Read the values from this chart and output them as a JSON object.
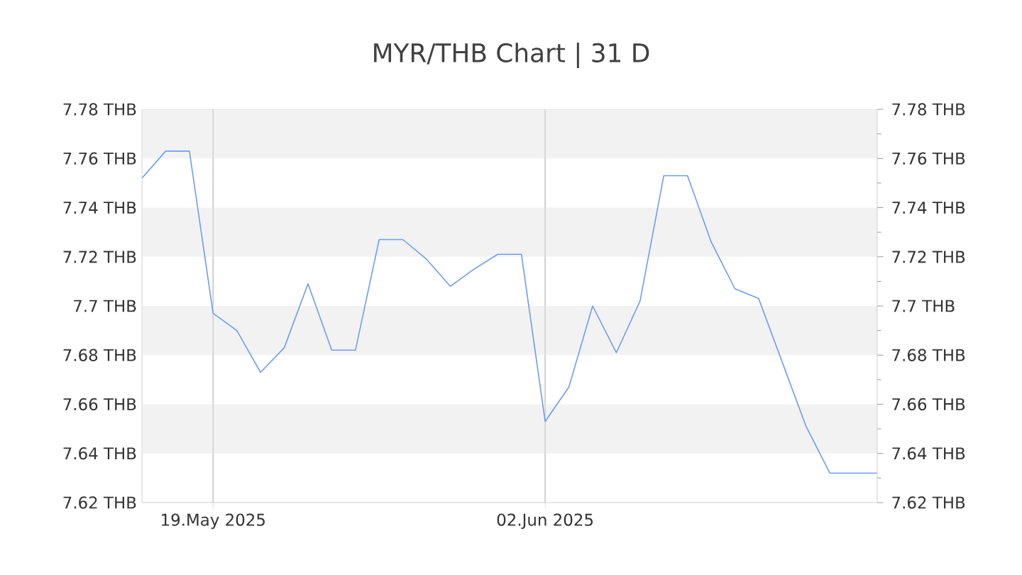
{
  "chart_data": {
    "type": "line",
    "title": "MYR/THB Chart | 31 D",
    "x": [
      "2025-05-16",
      "2025-05-17",
      "2025-05-18",
      "2025-05-19",
      "2025-05-20",
      "2025-05-21",
      "2025-05-22",
      "2025-05-23",
      "2025-05-24",
      "2025-05-25",
      "2025-05-26",
      "2025-05-27",
      "2025-05-28",
      "2025-05-29",
      "2025-05-30",
      "2025-05-31",
      "2025-06-01",
      "2025-06-02",
      "2025-06-03",
      "2025-06-04",
      "2025-06-05",
      "2025-06-06",
      "2025-06-07",
      "2025-06-08",
      "2025-06-09",
      "2025-06-10",
      "2025-06-11",
      "2025-06-12",
      "2025-06-13",
      "2025-06-14",
      "2025-06-15",
      "2025-06-16"
    ],
    "series": [
      {
        "color": "#6f9cf0",
        "values": [
          7.752,
          7.763,
          7.763,
          7.697,
          7.69,
          7.673,
          7.683,
          7.709,
          7.682,
          7.682,
          7.727,
          7.727,
          7.719,
          7.708,
          7.715,
          7.721,
          7.721,
          7.653,
          7.667,
          7.7,
          7.681,
          7.702,
          7.753,
          7.753,
          7.726,
          7.707,
          7.703,
          7.677,
          7.651,
          7.632,
          7.632,
          7.632
        ]
      }
    ],
    "xlim": [
      "2025-05-16",
      "2025-06-16"
    ],
    "xticks": [
      {
        "value": "2025-05-19",
        "label": "19.May 2025"
      },
      {
        "value": "2025-06-02",
        "label": "02.Jun 2025"
      }
    ],
    "ylim": [
      7.62,
      7.78
    ],
    "yticks": [
      {
        "value": 7.62,
        "label": "7.62 THB"
      },
      {
        "value": 7.64,
        "label": "7.64 THB"
      },
      {
        "value": 7.66,
        "label": "7.66 THB"
      },
      {
        "value": 7.68,
        "label": "7.68 THB"
      },
      {
        "value": 7.7,
        "label": "7.7 THB"
      },
      {
        "value": 7.72,
        "label": "7.72 THB"
      },
      {
        "value": 7.74,
        "label": "7.74 THB"
      },
      {
        "value": 7.76,
        "label": "7.76 THB"
      },
      {
        "value": 7.78,
        "label": "7.78 THB"
      }
    ],
    "y2lim": [
      7.62,
      7.78
    ],
    "y2ticks": [
      {
        "value": 7.62,
        "label": "7.62 THB"
      },
      {
        "value": 7.64,
        "label": "7.64 THB"
      },
      {
        "value": 7.66,
        "label": "7.66 THB"
      },
      {
        "value": 7.68,
        "label": "7.68 THB"
      },
      {
        "value": 7.7,
        "label": "7.7 THB"
      },
      {
        "value": 7.72,
        "label": "7.72 THB"
      },
      {
        "value": 7.74,
        "label": "7.74 THB"
      },
      {
        "value": 7.76,
        "label": "7.76 THB"
      },
      {
        "value": 7.78,
        "label": "7.78 THB"
      }
    ],
    "grid": true,
    "legend": false,
    "marker": "none",
    "line_style": "solid"
  }
}
